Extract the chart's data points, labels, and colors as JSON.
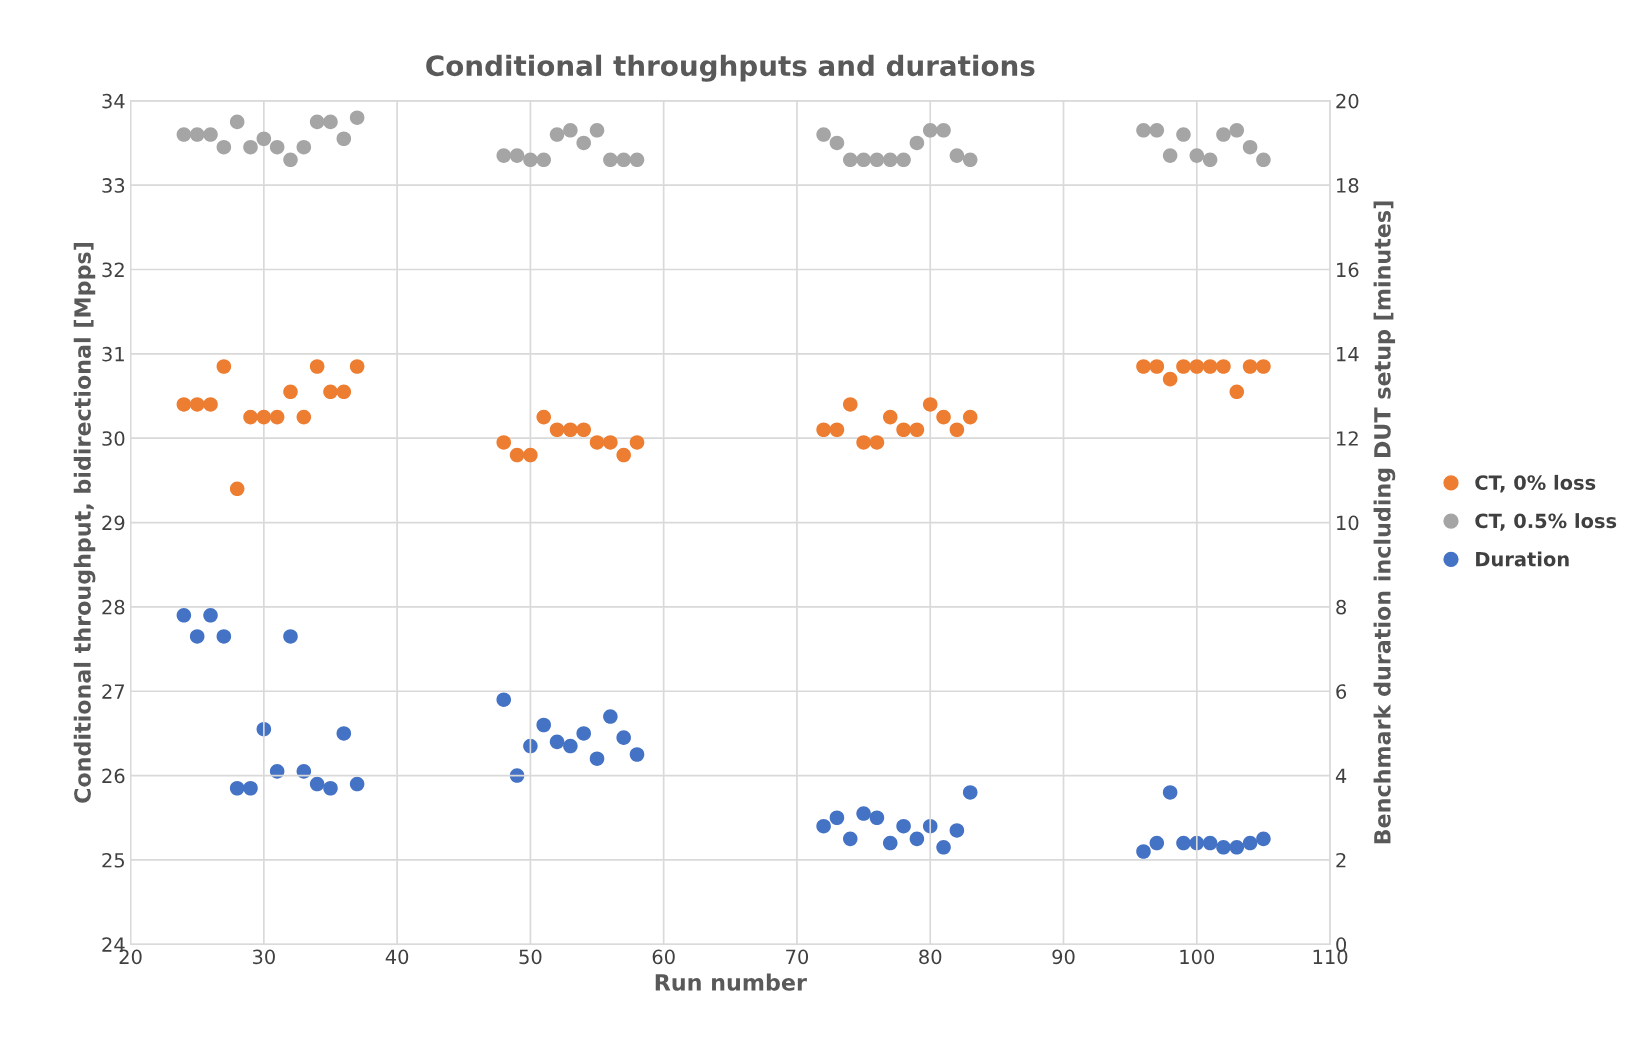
{
  "chart_data": {
    "type": "scatter",
    "title": "Conditional throughputs and durations",
    "xlabel": "Run number",
    "ylabel": "Conditional throughput, bidirectional [Mpps]",
    "y2label": "Benchmark duration including DUT setup [minutes]",
    "x": [
      24,
      25,
      26,
      27,
      28,
      29,
      30,
      31,
      32,
      33,
      34,
      35,
      36,
      37,
      48,
      49,
      50,
      51,
      52,
      53,
      54,
      55,
      56,
      57,
      58,
      72,
      73,
      74,
      75,
      76,
      77,
      78,
      79,
      80,
      81,
      82,
      83,
      96,
      97,
      98,
      99,
      100,
      101,
      102,
      103,
      104,
      105
    ],
    "series": [
      {
        "name": "CT, 0% loss",
        "color": "#ed7d31",
        "values": [
          30.4,
          30.4,
          30.4,
          30.85,
          29.4,
          30.25,
          30.25,
          30.25,
          30.55,
          30.25,
          30.85,
          30.55,
          30.55,
          30.85,
          29.95,
          29.8,
          29.8,
          30.25,
          30.1,
          30.1,
          30.1,
          29.95,
          29.95,
          29.8,
          29.95,
          30.1,
          30.1,
          30.4,
          29.95,
          29.95,
          30.25,
          30.1,
          30.1,
          30.4,
          30.25,
          30.1,
          30.25,
          30.85,
          30.85,
          30.7,
          30.85,
          30.85,
          30.85,
          30.85,
          30.55,
          30.85,
          30.85
        ]
      },
      {
        "name": "CT, 0.5% loss",
        "color": "#a5a5a5",
        "values": [
          33.6,
          33.6,
          33.6,
          33.45,
          33.75,
          33.45,
          33.55,
          33.45,
          33.3,
          33.45,
          33.75,
          33.75,
          33.55,
          33.8,
          33.35,
          33.35,
          33.3,
          33.3,
          33.6,
          33.65,
          33.5,
          33.65,
          33.3,
          33.3,
          33.3,
          33.6,
          33.5,
          33.3,
          33.3,
          33.3,
          33.3,
          33.3,
          33.5,
          33.65,
          33.65,
          33.35,
          33.3,
          33.65,
          33.65,
          33.35,
          33.6,
          33.35,
          33.3,
          33.6,
          33.65,
          33.45,
          33.3
        ]
      },
      {
        "name": "Duration",
        "color": "#4472c4",
        "axis": "y2",
        "values": [
          7.8,
          7.3,
          7.8,
          7.3,
          3.7,
          3.7,
          5.1,
          4.1,
          7.3,
          4.1,
          3.8,
          3.7,
          5.0,
          3.8,
          5.8,
          4.0,
          4.7,
          5.2,
          4.8,
          4.7,
          5.0,
          4.4,
          5.4,
          4.9,
          4.5,
          2.8,
          3.0,
          2.5,
          3.1,
          3.0,
          2.4,
          2.8,
          2.5,
          2.8,
          2.3,
          2.7,
          3.6,
          2.2,
          2.4,
          3.6,
          2.4,
          2.4,
          2.4,
          2.3,
          2.3,
          2.4,
          2.5
        ]
      }
    ],
    "xlim": [
      20,
      110
    ],
    "xticks": [
      20,
      30,
      40,
      50,
      60,
      70,
      80,
      90,
      100,
      110
    ],
    "ylim": [
      24,
      34
    ],
    "yticks": [
      24,
      25,
      26,
      27,
      28,
      29,
      30,
      31,
      32,
      33,
      34
    ],
    "y2lim": [
      0,
      20
    ],
    "y2ticks": [
      0,
      2,
      4,
      6,
      8,
      10,
      12,
      14,
      16,
      18,
      20
    ],
    "grid": true,
    "legend": "right",
    "marker": "circle"
  }
}
